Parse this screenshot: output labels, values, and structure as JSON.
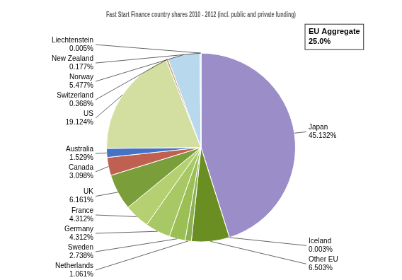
{
  "chart_data": {
    "type": "pie",
    "title": "Fast Start Finance country shares 2010 - 2012 (incl. public and private funding)",
    "categories": [
      "Japan",
      "Iceland",
      "Other EU",
      "Netherlands",
      "Sweden",
      "Germany",
      "France",
      "UK",
      "Canada",
      "Australia",
      "US",
      "Switzerland",
      "Norway",
      "New Zealand",
      "Liechtenstein"
    ],
    "values": [
      45.132,
      0.003,
      6.503,
      1.061,
      2.738,
      4.312,
      4.312,
      6.161,
      3.098,
      1.529,
      19.124,
      0.368,
      5.477,
      0.177,
      0.005
    ],
    "value_labels": [
      "45.132%",
      "0.003%",
      "6.503%",
      "1.061%",
      "2.738%",
      "4.312%",
      "4.312%",
      "6.161%",
      "3.098%",
      "1.529%",
      "19.124%",
      "0.368%",
      "5.477%",
      "0.177%",
      "0.005%"
    ],
    "colors": [
      "#9B8DC8",
      "#1B3A6B",
      "#6B8E23",
      "#8DB050",
      "#9BBF55",
      "#A8C865",
      "#B5D070",
      "#7A9E3A",
      "#C06050",
      "#4472C4",
      "#D2DFA0",
      "#C8A882",
      "#B8D8EE",
      "#2ABAAA",
      "#E8A060"
    ],
    "data_labels": true,
    "annotations": [
      "EU Aggregate\n25.0%"
    ]
  }
}
